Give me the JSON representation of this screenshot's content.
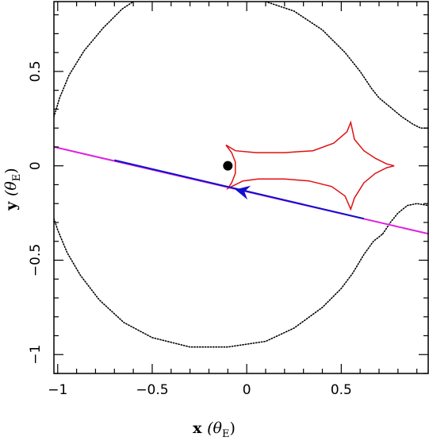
{
  "chart_data": {
    "type": "line",
    "xlabel_main": "x",
    "xlabel_theta": "(θ",
    "xlabel_sub": "E",
    "xlabel_close": ")",
    "ylabel_main": "y",
    "ylabel_theta": "(θ",
    "ylabel_sub": "E",
    "ylabel_close": ")",
    "xlim": [
      -1.02,
      0.96
    ],
    "ylim": [
      -1.1,
      0.87
    ],
    "xticks": [
      {
        "value": -1,
        "label": "−1"
      },
      {
        "value": -0.5,
        "label": "−0.5"
      },
      {
        "value": 0,
        "label": "0"
      },
      {
        "value": 0.5,
        "label": "0.5"
      }
    ],
    "yticks": [
      {
        "value": -1,
        "label": "−1"
      },
      {
        "value": -0.5,
        "label": "−0.5"
      },
      {
        "value": 0,
        "label": "0"
      },
      {
        "value": 0.5,
        "label": "0.5"
      }
    ],
    "minor_step": 0.1,
    "colors": {
      "critical_curve": "#000000",
      "caustic": "#e01010",
      "trajectory": "#dd22dd",
      "trajectory_segment": "#1010cc",
      "lens": "#000000"
    },
    "series": [
      {
        "kind": "critical_curve_main",
        "points": [
          [
            -1.02,
            -0.28
          ],
          [
            -1.0,
            -0.34
          ],
          [
            -0.95,
            -0.46
          ],
          [
            -0.88,
            -0.58
          ],
          [
            -0.78,
            -0.71
          ],
          [
            -0.65,
            -0.83
          ],
          [
            -0.5,
            -0.91
          ],
          [
            -0.3,
            -0.96
          ],
          [
            -0.1,
            -0.96
          ],
          [
            0.1,
            -0.93
          ],
          [
            0.25,
            -0.86
          ],
          [
            0.4,
            -0.75
          ],
          [
            0.5,
            -0.65
          ],
          [
            0.56,
            -0.57
          ],
          [
            0.62,
            -0.47
          ],
          [
            0.67,
            -0.4
          ],
          [
            0.72,
            -0.36
          ]
        ]
      },
      {
        "kind": "critical_curve_main_top",
        "points": [
          [
            -1.02,
            0.26
          ],
          [
            -0.99,
            0.36
          ],
          [
            -0.94,
            0.48
          ],
          [
            -0.86,
            0.61
          ],
          [
            -0.76,
            0.73
          ],
          [
            -0.66,
            0.83
          ],
          [
            -0.6,
            0.87
          ]
        ]
      },
      {
        "kind": "critical_curve_right_upper",
        "points": [
          [
            0.1,
            0.87
          ],
          [
            0.25,
            0.82
          ],
          [
            0.4,
            0.72
          ],
          [
            0.52,
            0.6
          ],
          [
            0.6,
            0.5
          ],
          [
            0.66,
            0.41
          ],
          [
            0.7,
            0.36
          ],
          [
            0.76,
            0.31
          ],
          [
            0.82,
            0.26
          ],
          [
            0.88,
            0.22
          ],
          [
            0.92,
            0.2
          ],
          [
            0.96,
            0.2
          ]
        ]
      },
      {
        "kind": "critical_curve_right_lower",
        "points": [
          [
            0.72,
            -0.36
          ],
          [
            0.76,
            -0.3
          ],
          [
            0.8,
            -0.25
          ],
          [
            0.85,
            -0.21
          ],
          [
            0.9,
            -0.2
          ],
          [
            0.96,
            -0.21
          ]
        ]
      },
      {
        "kind": "caustic",
        "points": [
          [
            -0.11,
            0.11
          ],
          [
            -0.06,
            0.08
          ],
          [
            0.05,
            0.07
          ],
          [
            0.2,
            0.07
          ],
          [
            0.35,
            0.08
          ],
          [
            0.46,
            0.12
          ],
          [
            0.53,
            0.18
          ],
          [
            0.55,
            0.23
          ],
          [
            0.57,
            0.14
          ],
          [
            0.62,
            0.08
          ],
          [
            0.68,
            0.04
          ],
          [
            0.74,
            0.01
          ],
          [
            0.78,
            0.0
          ],
          [
            0.74,
            -0.01
          ],
          [
            0.68,
            -0.04
          ],
          [
            0.62,
            -0.09
          ],
          [
            0.57,
            -0.17
          ],
          [
            0.55,
            -0.23
          ],
          [
            0.52,
            -0.16
          ],
          [
            0.45,
            -0.11
          ],
          [
            0.33,
            -0.08
          ],
          [
            0.2,
            -0.07
          ],
          [
            0.06,
            -0.07
          ],
          [
            -0.02,
            -0.08
          ],
          [
            -0.06,
            -0.1
          ],
          [
            -0.1,
            -0.12
          ],
          [
            -0.08,
            -0.09
          ],
          [
            -0.06,
            -0.04
          ],
          [
            -0.06,
            0.02
          ],
          [
            -0.08,
            0.07
          ],
          [
            -0.11,
            0.11
          ]
        ]
      },
      {
        "kind": "trajectory",
        "points": [
          [
            -1.02,
            0.1
          ],
          [
            0.96,
            -0.36
          ]
        ]
      },
      {
        "kind": "trajectory_segment",
        "points": [
          [
            -0.7,
            0.03
          ],
          [
            0.62,
            -0.28
          ]
        ]
      }
    ],
    "lens_point": {
      "x": -0.1,
      "y": 0.0
    },
    "arrow": {
      "x": -0.02,
      "y": -0.135,
      "dx": -1.0,
      "dy": 0.232
    }
  }
}
